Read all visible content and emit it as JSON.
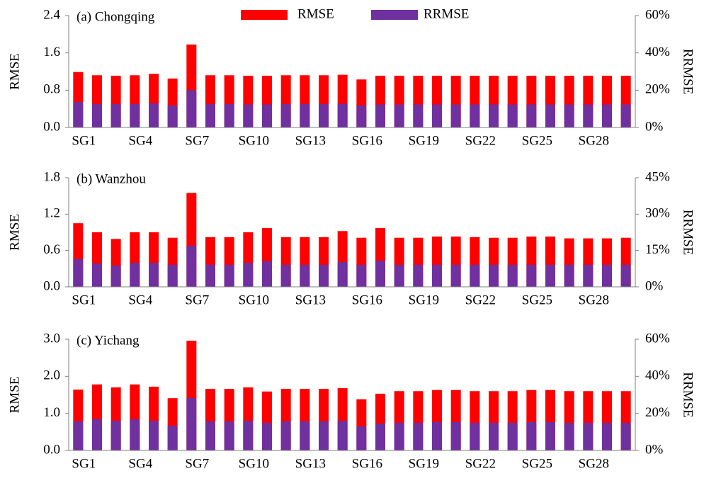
{
  "chart_data": [
    {
      "type": "bar",
      "title": "(a) Chongqing",
      "y_label": "RMSE",
      "y2_label": "RRMSE",
      "legend": "upper center",
      "categories": [
        "SG1",
        null,
        null,
        "SG4",
        null,
        null,
        "SG7",
        null,
        null,
        "SG10",
        null,
        null,
        "SG13",
        null,
        null,
        "SG16",
        null,
        null,
        "SG19",
        null,
        null,
        "SG22",
        null,
        null,
        "SG25",
        null,
        null,
        "SG28",
        null,
        null
      ],
      "ylim": [
        0,
        2.4
      ],
      "yticks": [
        {
          "value": 0,
          "label": "0.0"
        },
        0.8,
        1.6,
        2.4
      ],
      "y2lim": [
        0,
        60
      ],
      "y2ticks": [
        {
          "value": 0,
          "label": "0%"
        },
        {
          "value": 20,
          "label": "20%"
        },
        {
          "value": 40,
          "label": "40%"
        },
        {
          "value": 60,
          "label": "60%"
        }
      ],
      "series": [
        {
          "name": "RMSE",
          "color": "#ff0000",
          "values": [
            1.19,
            1.12,
            1.11,
            1.12,
            1.15,
            1.05,
            1.78,
            1.12,
            1.12,
            1.11,
            1.11,
            1.12,
            1.12,
            1.12,
            1.13,
            1.03,
            1.11,
            1.11,
            1.11,
            1.11,
            1.11,
            1.11,
            1.11,
            1.11,
            1.11,
            1.11,
            1.11,
            1.11,
            1.11,
            1.11
          ]
        },
        {
          "name": "RRMSE",
          "color": "#7030a0",
          "axis": "y2",
          "values": [
            13.7,
            12.5,
            12.5,
            12.5,
            12.9,
            11.8,
            20,
            12.5,
            12.5,
            12.3,
            12.3,
            12.5,
            12.5,
            12.5,
            12.7,
            11.8,
            12.3,
            12.3,
            12.3,
            12.3,
            12.3,
            12.3,
            12.3,
            12.3,
            12.3,
            12.3,
            12.3,
            12.3,
            12.3,
            12.3
          ]
        }
      ]
    },
    {
      "type": "bar",
      "title": "(b) Wanzhou",
      "y_label": "RMSE",
      "y2_label": "RRMSE",
      "categories": [
        "SG1",
        null,
        null,
        "SG4",
        null,
        null,
        "SG7",
        null,
        null,
        "SG10",
        null,
        null,
        "SG13",
        null,
        null,
        "SG16",
        null,
        null,
        "SG19",
        null,
        null,
        "SG22",
        null,
        null,
        "SG25",
        null,
        null,
        "SG28",
        null,
        null
      ],
      "ylim": [
        0,
        1.8
      ],
      "yticks": [
        {
          "value": 0,
          "label": "0.0"
        },
        0.6,
        1.2,
        1.8
      ],
      "y2lim": [
        0,
        45
      ],
      "y2ticks": [
        {
          "value": 0,
          "label": "0%"
        },
        {
          "value": 15,
          "label": "15%"
        },
        {
          "value": 30,
          "label": "30%"
        },
        {
          "value": 45,
          "label": "45%"
        }
      ],
      "series": [
        {
          "color": "#ff0000",
          "values": [
            1.05,
            0.9,
            0.79,
            0.9,
            0.9,
            0.81,
            1.55,
            0.82,
            0.82,
            0.9,
            0.97,
            0.82,
            0.82,
            0.82,
            0.92,
            0.81,
            0.97,
            0.81,
            0.81,
            0.83,
            0.83,
            0.82,
            0.81,
            0.81,
            0.83,
            0.83,
            0.8,
            0.8,
            0.8,
            0.81
          ]
        },
        {
          "color": "#7030a0",
          "axis": "y2",
          "values": [
            11.4,
            9.6,
            8.8,
            9.9,
            9.9,
            9.1,
            17,
            9.1,
            9.1,
            9.9,
            10.5,
            9.1,
            9.1,
            9.1,
            10.2,
            9.1,
            10.8,
            9.1,
            9.1,
            9.1,
            9.1,
            9.1,
            9.1,
            9.1,
            9.1,
            9.1,
            9.1,
            9.1,
            9.1,
            9.1
          ]
        }
      ]
    },
    {
      "type": "bar",
      "title": "(c) Yichang",
      "y_label": "RMSE",
      "y2_label": "RRMSE",
      "categories": [
        "SG1",
        null,
        null,
        "SG4",
        null,
        null,
        "SG7",
        null,
        null,
        "SG10",
        null,
        null,
        "SG13",
        null,
        null,
        "SG16",
        null,
        null,
        "SG19",
        null,
        null,
        "SG22",
        null,
        null,
        "SG25",
        null,
        null,
        "SG28",
        null,
        null
      ],
      "ylim": [
        0,
        3
      ],
      "yticks": [
        {
          "value": 0,
          "label": "0.0"
        },
        {
          "value": 1,
          "label": "1.0"
        },
        {
          "value": 2,
          "label": "2.0"
        },
        {
          "value": 3,
          "label": "3.0"
        }
      ],
      "y2lim": [
        0,
        60
      ],
      "y2ticks": [
        {
          "value": 0,
          "label": "0%"
        },
        {
          "value": 20,
          "label": "20%"
        },
        {
          "value": 40,
          "label": "40%"
        },
        {
          "value": 60,
          "label": "60%"
        }
      ],
      "series": [
        {
          "color": "#ff0000",
          "values": [
            1.64,
            1.78,
            1.7,
            1.78,
            1.72,
            1.41,
            2.96,
            1.66,
            1.66,
            1.7,
            1.59,
            1.66,
            1.66,
            1.66,
            1.68,
            1.38,
            1.53,
            1.6,
            1.6,
            1.63,
            1.63,
            1.6,
            1.6,
            1.6,
            1.63,
            1.63,
            1.6,
            1.6,
            1.6,
            1.6
          ]
        },
        {
          "color": "#7030a0",
          "axis": "y2",
          "values": [
            15.6,
            16.8,
            16,
            16.8,
            16,
            13.4,
            28.3,
            15.6,
            15.6,
            16,
            14.9,
            15.6,
            15.6,
            15.6,
            16,
            13,
            14.5,
            14.9,
            14.9,
            15.3,
            15.3,
            14.9,
            14.9,
            14.9,
            15.3,
            15.3,
            14.9,
            14.9,
            14.9,
            14.9
          ]
        }
      ]
    }
  ]
}
